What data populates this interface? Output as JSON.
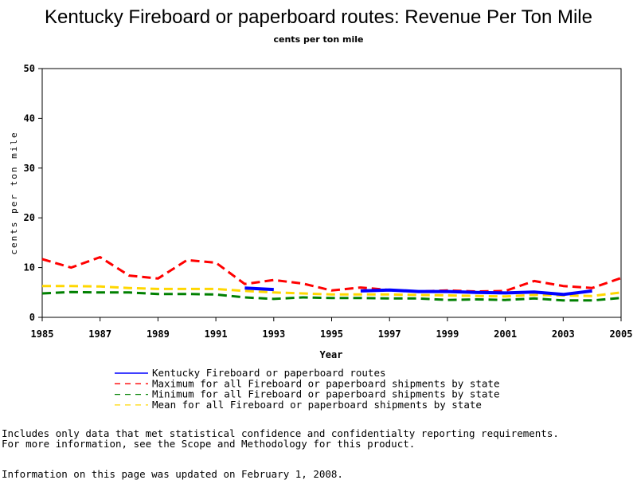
{
  "chart_data": {
    "type": "line",
    "title": "Kentucky Fireboard or paperboard routes: Revenue Per Ton Mile",
    "subtitle": "cents per ton mile",
    "xlabel": "Year",
    "ylabel": "cents per ton mile",
    "xlim": [
      1985,
      2005
    ],
    "ylim": [
      0,
      50
    ],
    "xticks": [
      "1985",
      "1987",
      "1989",
      "1991",
      "1993",
      "1995",
      "1997",
      "1999",
      "2001",
      "2003",
      "2005"
    ],
    "yticks": [
      "0",
      "10",
      "20",
      "30",
      "40",
      "50"
    ],
    "grid": false,
    "legend_position": "bottom",
    "series": [
      {
        "name": "Kentucky Fireboard or paperboard routes",
        "color": "#0000ff",
        "dash": "solid",
        "points": [
          [
            1992,
            5.9
          ],
          [
            1993,
            5.6
          ],
          [
            null,
            null
          ],
          [
            1996,
            5.3
          ],
          [
            1997,
            5.5
          ],
          [
            1998,
            5.2
          ],
          [
            1999,
            5.2
          ],
          [
            2000,
            5.0
          ],
          [
            2001,
            4.9
          ],
          [
            2002,
            5.1
          ],
          [
            2003,
            4.6
          ],
          [
            2004,
            5.3
          ]
        ]
      },
      {
        "name": "Maximum for all Fireboard or paperboard shipments by state",
        "color": "#ff0000",
        "dash": "dashed",
        "points": [
          [
            1985,
            11.7
          ],
          [
            1986,
            10.0
          ],
          [
            1987,
            12.1
          ],
          [
            1988,
            8.4
          ],
          [
            1989,
            7.8
          ],
          [
            1990,
            11.5
          ],
          [
            1991,
            11.0
          ],
          [
            1992,
            6.7
          ],
          [
            1993,
            7.5
          ],
          [
            1994,
            6.8
          ],
          [
            1995,
            5.4
          ],
          [
            1996,
            6.0
          ],
          [
            1997,
            5.5
          ],
          [
            1998,
            5.2
          ],
          [
            1999,
            5.4
          ],
          [
            2000,
            5.2
          ],
          [
            2001,
            5.3
          ],
          [
            2002,
            7.3
          ],
          [
            2003,
            6.3
          ],
          [
            2004,
            5.9
          ],
          [
            2005,
            7.9
          ]
        ]
      },
      {
        "name": "Minimum for all Fireboard or paperboard shipments by state",
        "color": "#008000",
        "dash": "dashed",
        "points": [
          [
            1985,
            4.8
          ],
          [
            1986,
            5.1
          ],
          [
            1987,
            5.0
          ],
          [
            1988,
            5.0
          ],
          [
            1989,
            4.7
          ],
          [
            1990,
            4.7
          ],
          [
            1991,
            4.6
          ],
          [
            1992,
            4.0
          ],
          [
            1993,
            3.7
          ],
          [
            1994,
            4.0
          ],
          [
            1995,
            3.9
          ],
          [
            1996,
            3.9
          ],
          [
            1997,
            3.8
          ],
          [
            1998,
            3.8
          ],
          [
            1999,
            3.5
          ],
          [
            2000,
            3.6
          ],
          [
            2001,
            3.5
          ],
          [
            2002,
            3.8
          ],
          [
            2003,
            3.4
          ],
          [
            2004,
            3.4
          ],
          [
            2005,
            3.9
          ]
        ]
      },
      {
        "name": "Mean for all Fireboard or paperboard shipments by state",
        "color": "#ffd700",
        "dash": "dashed",
        "points": [
          [
            1985,
            6.3
          ],
          [
            1986,
            6.3
          ],
          [
            1987,
            6.2
          ],
          [
            1988,
            5.9
          ],
          [
            1989,
            5.7
          ],
          [
            1990,
            5.7
          ],
          [
            1991,
            5.7
          ],
          [
            1992,
            5.3
          ],
          [
            1993,
            5.0
          ],
          [
            1994,
            4.8
          ],
          [
            1995,
            4.6
          ],
          [
            1996,
            4.6
          ],
          [
            1997,
            4.6
          ],
          [
            1998,
            4.5
          ],
          [
            1999,
            4.4
          ],
          [
            2000,
            4.3
          ],
          [
            2001,
            4.2
          ],
          [
            2002,
            4.5
          ],
          [
            2003,
            4.4
          ],
          [
            2004,
            4.3
          ],
          [
            2005,
            5.0
          ]
        ]
      }
    ]
  },
  "footnotes": {
    "line1": "Includes only data that met statistical confidence and confidentialty reporting requirements.",
    "line2": "For more information, see the Scope and Methodology for this product.",
    "line3": "Information on this page was updated on February 1, 2008."
  }
}
